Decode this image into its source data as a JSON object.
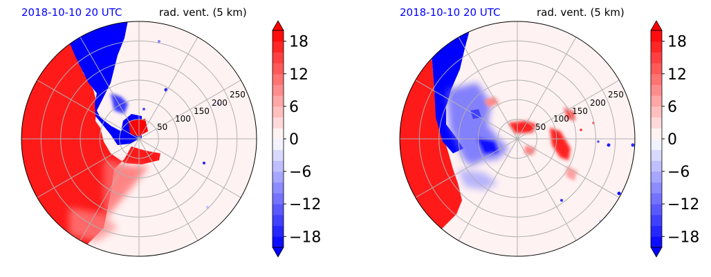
{
  "panels": [
    {
      "title_left": "2018-10-10 20 UTC",
      "title_right": "rad. vent. (5 km)"
    },
    {
      "title_left": "2018-10-10 20 UTC",
      "title_right": "rad. vent. (5 km)"
    }
  ],
  "colors": {
    "title_left": "#0000ff",
    "negative_max": "#0000ff",
    "positive_max": "#ff0000",
    "grid": "#b0b0b0"
  },
  "chart_data": [
    {
      "type": "heatmap",
      "projection": "polar",
      "title_left": "2018-10-10 20 UTC",
      "title_right": "rad. vent. (5 km)",
      "radial_ticks": [
        50,
        100,
        150,
        200,
        250
      ],
      "rlim": [
        0,
        300
      ],
      "angular_grid_deg": [
        0,
        30,
        60,
        90,
        120,
        150,
        180,
        210,
        240,
        270,
        300,
        330
      ],
      "grid": true,
      "colorbar": {
        "ticks": [
          -18,
          -12,
          -6,
          0,
          6,
          12,
          18
        ],
        "tick_labels": [
          "−18",
          "−12",
          "−6",
          "0",
          "6",
          "12",
          "18"
        ],
        "range": [
          -20,
          20
        ],
        "levels": 20,
        "extend": "both",
        "cmap": "bwr"
      }
    },
    {
      "type": "heatmap",
      "projection": "polar",
      "title_left": "2018-10-10 20 UTC",
      "title_right": "rad. vent. (5 km)",
      "radial_ticks": [
        50,
        100,
        150,
        200,
        250
      ],
      "rlim": [
        0,
        300
      ],
      "angular_grid_deg": [
        0,
        30,
        60,
        90,
        120,
        150,
        180,
        210,
        240,
        270,
        300,
        330
      ],
      "grid": true,
      "colorbar": {
        "ticks": [
          -18,
          -12,
          -6,
          0,
          6,
          12,
          18
        ],
        "tick_labels": [
          "−18",
          "−12",
          "−6",
          "0",
          "6",
          "12",
          "18"
        ],
        "range": [
          -20,
          20
        ],
        "levels": 20,
        "extend": "both",
        "cmap": "bwr"
      }
    }
  ]
}
